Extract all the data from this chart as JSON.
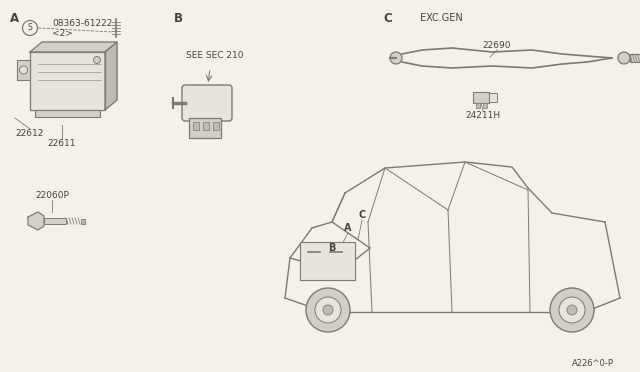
{
  "bg_color": "#f5f0e8",
  "line_color": "#7a7a7a",
  "text_color": "#444444",
  "figure_code": "A226^0-P",
  "part_08363": "08363-61222",
  "part_2": "<2>",
  "part_22612": "22612",
  "part_22611": "22611",
  "part_see_sec": "SEE SEC 210",
  "part_22690": "22690",
  "part_24211H": "24211H",
  "part_22060P": "22060P",
  "label_A": "A",
  "label_B": "B",
  "label_C": "C",
  "label_exc": "EXC.GEN",
  "face_light": "#e8e4dc",
  "face_mid": "#d4cfc6",
  "face_dark": "#bfbab2"
}
